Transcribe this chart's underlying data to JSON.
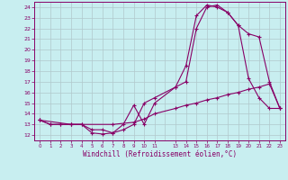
{
  "xlabel": "Windchill (Refroidissement éolien,°C)",
  "bg_color": "#c8eef0",
  "grid_color": "#b0c8cc",
  "line_color": "#880066",
  "xlim": [
    -0.5,
    23.5
  ],
  "ylim": [
    11.5,
    24.5
  ],
  "x_ticks": [
    0,
    1,
    2,
    3,
    4,
    5,
    6,
    7,
    8,
    9,
    10,
    11,
    13,
    14,
    15,
    16,
    17,
    18,
    19,
    20,
    21,
    22,
    23
  ],
  "x_tick_labels": [
    "0",
    "1",
    "2",
    "3",
    "4",
    "5",
    "6",
    "7",
    "8",
    "9",
    "1011",
    "",
    "1314",
    "",
    "1516",
    "",
    "1718",
    "",
    "1920",
    "",
    "2122",
    "",
    "23"
  ],
  "y_ticks": [
    12,
    13,
    14,
    15,
    16,
    17,
    18,
    19,
    20,
    21,
    22,
    23,
    24
  ],
  "series1_x": [
    0,
    1,
    2,
    3,
    4,
    5,
    6,
    7,
    8,
    9,
    10,
    11,
    13,
    14,
    15,
    16,
    17,
    18,
    19,
    20,
    21,
    22,
    23
  ],
  "series1_y": [
    13.4,
    13.0,
    13.0,
    13.0,
    13.0,
    12.2,
    12.1,
    12.2,
    13.0,
    14.8,
    13.0,
    15.0,
    16.5,
    18.5,
    23.2,
    24.2,
    24.0,
    23.5,
    22.3,
    17.3,
    15.5,
    14.5,
    14.5
  ],
  "series2_x": [
    0,
    1,
    2,
    3,
    4,
    5,
    6,
    7,
    8,
    9,
    10,
    11,
    13,
    14,
    15,
    16,
    17,
    18,
    19,
    20,
    21,
    22,
    23
  ],
  "series2_y": [
    13.4,
    13.0,
    13.0,
    13.0,
    13.0,
    12.5,
    12.5,
    12.2,
    12.5,
    13.0,
    15.0,
    15.5,
    16.5,
    17.0,
    22.0,
    24.0,
    24.2,
    23.5,
    22.3,
    21.5,
    21.2,
    17.0,
    14.5
  ],
  "series3_x": [
    0,
    3,
    7,
    9,
    10,
    11,
    13,
    14,
    15,
    16,
    17,
    18,
    19,
    20,
    21,
    22,
    23
  ],
  "series3_y": [
    13.4,
    13.0,
    13.0,
    13.2,
    13.5,
    14.0,
    14.5,
    14.8,
    15.0,
    15.3,
    15.5,
    15.8,
    16.0,
    16.3,
    16.5,
    16.8,
    14.5
  ]
}
